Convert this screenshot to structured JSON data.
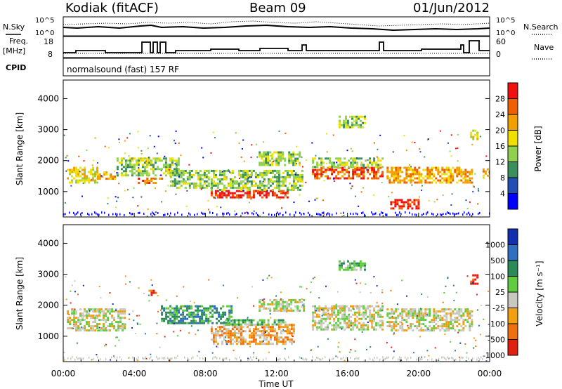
{
  "header": {
    "site": "Kodiak (fitACF)",
    "beam": "Beam 09",
    "date": "01/Jun/2012"
  },
  "panels": {
    "nsky": {
      "label": "N.Sky",
      "left_ticks": [
        "10^5",
        "10^0"
      ],
      "right_label": "N.Search",
      "right_ticks": [
        "10^5",
        "10^0"
      ]
    },
    "freq": {
      "label_top": "Freq.",
      "label_bottom": "[MHz]",
      "left_ticks": [
        "18",
        "8"
      ],
      "right_label": "Nave",
      "right_ticks": [
        "60",
        "0"
      ]
    },
    "cpid": {
      "label": "CPID",
      "text": "normalsound (fast) 157 RF"
    }
  },
  "chart_data": [
    {
      "type": "heatmap",
      "title": "",
      "xlabel": "Time UT",
      "ylabel": "Slant Range [km]",
      "x_ticks": [
        "00:00",
        "04:00",
        "08:00",
        "12:00",
        "16:00",
        "20:00",
        "00:00"
      ],
      "xlim": [
        0,
        24
      ],
      "y_ticks": [
        1000,
        2000,
        3000,
        4000
      ],
      "ylim": [
        180,
        4600
      ],
      "colorbar": {
        "label": "Power [dB]",
        "ticks": [
          "4",
          "8",
          "12",
          "16",
          "20",
          "24",
          "28"
        ],
        "colors": [
          "#0000ff",
          "#234fb5",
          "#3b8f5a",
          "#90d050",
          "#f0e000",
          "#f0a000",
          "#f06000",
          "#f01010"
        ]
      },
      "regions": [
        {
          "t0": 0.2,
          "t1": 1.9,
          "r0": 1300,
          "r1": 1800,
          "level": 4
        },
        {
          "t0": 1.9,
          "t1": 2.9,
          "r0": 1400,
          "r1": 1650,
          "level": 5
        },
        {
          "t0": 4.2,
          "t1": 5.6,
          "r0": 1250,
          "r1": 1450,
          "level": 6
        },
        {
          "t0": 3.0,
          "t1": 6.5,
          "r0": 1550,
          "r1": 2100,
          "level": 3
        },
        {
          "t0": 6.0,
          "t1": 8.2,
          "r0": 1100,
          "r1": 1700,
          "level": 3
        },
        {
          "t0": 8.3,
          "t1": 12.6,
          "r0": 800,
          "r1": 1050,
          "level": 7
        },
        {
          "t0": 8.3,
          "t1": 13.5,
          "r0": 1050,
          "r1": 1700,
          "level": 3
        },
        {
          "t0": 11.0,
          "t1": 13.3,
          "r0": 1850,
          "r1": 2300,
          "level": 3
        },
        {
          "t0": 14.0,
          "t1": 18.0,
          "r0": 1450,
          "r1": 1800,
          "level": 6
        },
        {
          "t0": 14.0,
          "t1": 18.0,
          "r0": 1800,
          "r1": 2100,
          "level": 3
        },
        {
          "t0": 18.2,
          "t1": 23.0,
          "r0": 1300,
          "r1": 1800,
          "level": 5
        },
        {
          "t0": 18.4,
          "t1": 20.0,
          "r0": 480,
          "r1": 760,
          "level": 7
        },
        {
          "t0": 15.5,
          "t1": 17.0,
          "r0": 3100,
          "r1": 3450,
          "level": 3
        },
        {
          "t0": 22.9,
          "t1": 23.3,
          "r0": 2700,
          "r1": 3000,
          "level": 4
        },
        {
          "t0": 23.6,
          "t1": 24.0,
          "r0": 1450,
          "r1": 1750,
          "level": 5
        }
      ]
    },
    {
      "type": "heatmap",
      "title": "",
      "xlabel": "Time UT",
      "ylabel": "Slant Range [km]",
      "x_ticks": [
        "00:00",
        "04:00",
        "08:00",
        "12:00",
        "16:00",
        "20:00",
        "00:00"
      ],
      "xlim": [
        0,
        24
      ],
      "y_ticks": [
        1000,
        2000,
        3000,
        4000
      ],
      "ylim": [
        180,
        4600
      ],
      "colorbar": {
        "label": "Velocity [m s⁻¹]",
        "ticks": [
          "1000",
          "500",
          "100",
          "25",
          "-25",
          "-100",
          "-500",
          "-1000"
        ],
        "colors": [
          "#1030b0",
          "#2f6fbf",
          "#2a8a5a",
          "#60cc40",
          "#c8c8c0",
          "#f0a010",
          "#f07010",
          "#e02010"
        ]
      },
      "regions": [
        {
          "t0": 0.2,
          "t1": 3.5,
          "r0": 1200,
          "r1": 1900,
          "level": 4
        },
        {
          "t0": 4.8,
          "t1": 5.2,
          "r0": 2350,
          "r1": 2500,
          "level": 6
        },
        {
          "t0": 5.5,
          "t1": 9.5,
          "r0": 1450,
          "r1": 2000,
          "level": 2
        },
        {
          "t0": 8.3,
          "t1": 13.0,
          "r0": 750,
          "r1": 1400,
          "level": 5
        },
        {
          "t0": 9.0,
          "t1": 12.5,
          "r0": 1400,
          "r1": 1550,
          "level": 3
        },
        {
          "t0": 11.0,
          "t1": 13.5,
          "r0": 1850,
          "r1": 2200,
          "level": 4
        },
        {
          "t0": 14.0,
          "t1": 18.0,
          "r0": 1200,
          "r1": 2000,
          "level": 4
        },
        {
          "t0": 18.2,
          "t1": 23.0,
          "r0": 1200,
          "r1": 1900,
          "level": 4
        },
        {
          "t0": 15.5,
          "t1": 17.0,
          "r0": 3150,
          "r1": 3450,
          "level": 3
        },
        {
          "t0": 22.9,
          "t1": 23.3,
          "r0": 2700,
          "r1": 3000,
          "level": 7
        }
      ]
    }
  ]
}
